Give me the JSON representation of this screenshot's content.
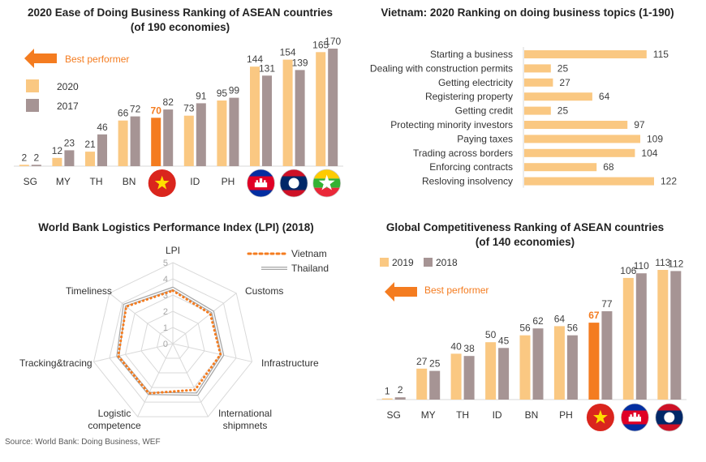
{
  "colors": {
    "bar_2020": "#fac882",
    "bar_2017": "#a69494",
    "vietnam": "#f47c20",
    "topic_bar": "#fac882",
    "grid": "#d9d9d9",
    "thailand": "#a6a6a6",
    "flag_vn": "#da251d",
    "flag_kh": "#032ea1",
    "flag_la": "#ce1126",
    "flag_mm": "#fecb00"
  },
  "chart_data": [
    {
      "type": "bar",
      "title": "2020 Ease of Doing Business Ranking of ASEAN countries",
      "subtitle": "(of 190 economies)",
      "categories": [
        "SG",
        "MY",
        "TH",
        "BN",
        "VN",
        "ID",
        "PH",
        "KH",
        "LA",
        "MM"
      ],
      "category_labels": [
        "SG",
        "MY",
        "TH",
        "BN",
        "",
        "ID",
        "PH",
        "",
        "",
        ""
      ],
      "flag_icons": [
        "",
        "",
        "",
        "",
        "vietnam-flag-icon",
        "",
        "",
        "cambodia-flag-icon",
        "laos-flag-icon",
        "myanmar-flag-icon"
      ],
      "highlight_index": 4,
      "series": [
        {
          "name": "2020",
          "values": [
            2,
            12,
            21,
            66,
            70,
            73,
            95,
            144,
            154,
            165
          ]
        },
        {
          "name": "2017",
          "values": [
            2,
            23,
            46,
            72,
            82,
            91,
            99,
            131,
            139,
            170
          ]
        }
      ],
      "best_performer": "Best performer",
      "ylim": [
        0,
        170
      ],
      "legend_position": "left"
    },
    {
      "type": "bar",
      "orientation": "horizontal",
      "title": "Vietnam: 2020 Ranking on doing business topics (1-190)",
      "categories": [
        "Starting a business",
        "Dealing with construction permits",
        "Getting electricity",
        "Registering property",
        "Getting credit",
        "Protecting minority investors",
        "Paying taxes",
        "Trading across borders",
        "Enforcing contracts",
        "Resloving insolvency"
      ],
      "values": [
        115,
        25,
        27,
        64,
        25,
        97,
        109,
        104,
        68,
        122
      ],
      "xlim": [
        0,
        122
      ]
    },
    {
      "type": "radar",
      "title": "World Bank Logistics Performance Index (LPI) (2018)",
      "axes": [
        "LPI",
        "Customs",
        "Infrastructure",
        "International shipmnets",
        "Logistic competence",
        "Tracking&tracing",
        "Timeliness"
      ],
      "axis_label_lines": [
        [
          "LPI"
        ],
        [
          "Customs"
        ],
        [
          "Infrastructure"
        ],
        [
          "International",
          "shipmnets"
        ],
        [
          "Logistic",
          "competence"
        ],
        [
          "Tracking&tracing"
        ],
        [
          "Timeliness"
        ]
      ],
      "ticks": [
        "0",
        "1",
        "2",
        "3",
        "4",
        "5"
      ],
      "range": [
        0,
        5
      ],
      "series": [
        {
          "name": "Vietnam",
          "values": [
            3.27,
            2.95,
            3.01,
            3.16,
            3.4,
            3.45,
            3.67
          ]
        },
        {
          "name": "Thailand",
          "values": [
            3.41,
            3.14,
            3.14,
            3.46,
            3.41,
            3.47,
            3.81
          ]
        }
      ],
      "legend_position": "top-right"
    },
    {
      "type": "bar",
      "title": "Global Competitiveness Ranking of ASEAN countries",
      "subtitle": "(of 140 economies)",
      "categories": [
        "SG",
        "MY",
        "TH",
        "ID",
        "BN",
        "PH",
        "VN",
        "KH",
        "LA"
      ],
      "category_labels": [
        "SG",
        "MY",
        "TH",
        "ID",
        "BN",
        "PH",
        "",
        "",
        ""
      ],
      "flag_icons": [
        "",
        "",
        "",
        "",
        "",
        "",
        "vietnam-flag-icon",
        "cambodia-flag-icon",
        "laos-flag-icon"
      ],
      "highlight_index": 6,
      "series": [
        {
          "name": "2019",
          "values": [
            1,
            27,
            40,
            50,
            56,
            64,
            67,
            106,
            113
          ]
        },
        {
          "name": "2018",
          "values": [
            2,
            25,
            38,
            45,
            62,
            56,
            77,
            110,
            112
          ]
        }
      ],
      "best_performer": "Best performer",
      "ylim": [
        0,
        113
      ],
      "legend_position": "top-left"
    }
  ],
  "source": "Source: World Bank: Doing Business, WEF"
}
